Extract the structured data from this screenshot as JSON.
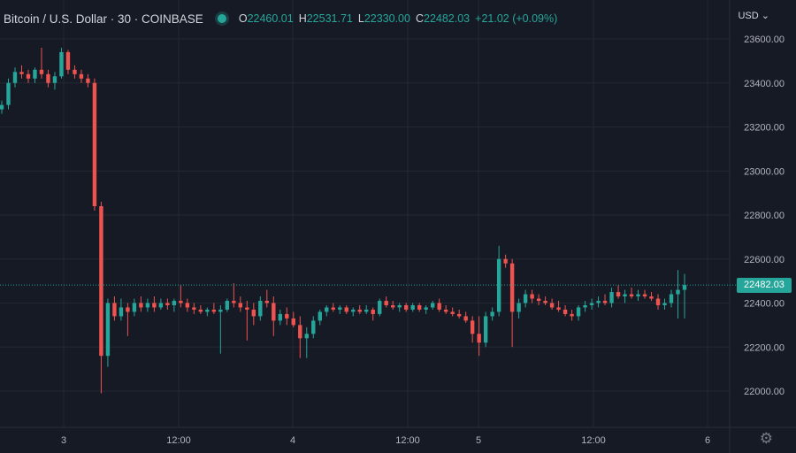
{
  "header": {
    "symbol": "Bitcoin / U.S. Dollar · 30 · COINBASE",
    "open_label": "O",
    "open": "22460.01",
    "high_label": "H",
    "high": "22531.71",
    "low_label": "L",
    "low": "22330.00",
    "close_label": "C",
    "close": "22482.03",
    "change": "+21.02 (+0.09%)"
  },
  "currency": "USD",
  "currency_icon": "chevron-down-icon",
  "settings_icon": "gear-icon",
  "last_price": "22482.03",
  "colors": {
    "up": "#26a69a",
    "down": "#ef5350",
    "background": "#161a25",
    "grid": "#242833"
  },
  "chart_data": {
    "type": "candlestick",
    "ylim": [
      21900,
      23700
    ],
    "ytick_labels": [
      "22000.00",
      "22200.00",
      "22400.00",
      "22600.00",
      "22800.00",
      "23000.00",
      "23200.00",
      "23400.00",
      "23600.00"
    ],
    "xtick_labels": [
      "3",
      "12:00",
      "4",
      "12:00",
      "5",
      "12:00",
      "6"
    ],
    "last_price": 22482.03,
    "candles": [
      [
        23280,
        23320,
        23260,
        23300
      ],
      [
        23300,
        23420,
        23280,
        23400
      ],
      [
        23400,
        23470,
        23380,
        23450
      ],
      [
        23450,
        23480,
        23420,
        23440
      ],
      [
        23440,
        23460,
        23400,
        23420
      ],
      [
        23420,
        23470,
        23400,
        23460
      ],
      [
        23460,
        23560,
        23420,
        23440
      ],
      [
        23440,
        23460,
        23380,
        23400
      ],
      [
        23400,
        23450,
        23370,
        23430
      ],
      [
        23430,
        23560,
        23420,
        23540
      ],
      [
        23540,
        23550,
        23440,
        23460
      ],
      [
        23460,
        23480,
        23420,
        23440
      ],
      [
        23440,
        23460,
        23400,
        23420
      ],
      [
        23420,
        23440,
        23380,
        23400
      ],
      [
        23400,
        23420,
        22820,
        22840
      ],
      [
        22840,
        22860,
        21990,
        22160
      ],
      [
        22160,
        22420,
        22110,
        22400
      ],
      [
        22400,
        22430,
        22320,
        22340
      ],
      [
        22340,
        22420,
        22320,
        22380
      ],
      [
        22380,
        22400,
        22250,
        22360
      ],
      [
        22360,
        22420,
        22340,
        22400
      ],
      [
        22400,
        22430,
        22360,
        22380
      ],
      [
        22380,
        22420,
        22360,
        22400
      ],
      [
        22400,
        22430,
        22360,
        22380
      ],
      [
        22380,
        22420,
        22370,
        22400
      ],
      [
        22400,
        22420,
        22370,
        22390
      ],
      [
        22390,
        22420,
        22360,
        22410
      ],
      [
        22410,
        22480,
        22380,
        22400
      ],
      [
        22400,
        22420,
        22360,
        22380
      ],
      [
        22380,
        22400,
        22350,
        22370
      ],
      [
        22370,
        22390,
        22350,
        22360
      ],
      [
        22360,
        22380,
        22340,
        22370
      ],
      [
        22370,
        22400,
        22350,
        22360
      ],
      [
        22360,
        22390,
        22170,
        22370
      ],
      [
        22370,
        22420,
        22360,
        22410
      ],
      [
        22410,
        22490,
        22380,
        22400
      ],
      [
        22400,
        22430,
        22360,
        22380
      ],
      [
        22380,
        22410,
        22230,
        22370
      ],
      [
        22370,
        22400,
        22300,
        22340
      ],
      [
        22340,
        22430,
        22320,
        22410
      ],
      [
        22410,
        22460,
        22380,
        22400
      ],
      [
        22400,
        22430,
        22250,
        22320
      ],
      [
        22320,
        22370,
        22300,
        22350
      ],
      [
        22350,
        22380,
        22300,
        22330
      ],
      [
        22330,
        22360,
        22290,
        22300
      ],
      [
        22300,
        22340,
        22150,
        22240
      ],
      [
        22240,
        22290,
        22150,
        22260
      ],
      [
        22260,
        22340,
        22240,
        22320
      ],
      [
        22320,
        22370,
        22300,
        22360
      ],
      [
        22360,
        22390,
        22340,
        22380
      ],
      [
        22380,
        22400,
        22360,
        22370
      ],
      [
        22370,
        22390,
        22350,
        22380
      ],
      [
        22380,
        22390,
        22350,
        22360
      ],
      [
        22360,
        22380,
        22340,
        22370
      ],
      [
        22370,
        22390,
        22350,
        22360
      ],
      [
        22360,
        22390,
        22350,
        22370
      ],
      [
        22370,
        22380,
        22320,
        22350
      ],
      [
        22350,
        22420,
        22340,
        22410
      ],
      [
        22410,
        22430,
        22380,
        22390
      ],
      [
        22390,
        22410,
        22370,
        22380
      ],
      [
        22380,
        22400,
        22360,
        22390
      ],
      [
        22390,
        22400,
        22360,
        22370
      ],
      [
        22370,
        22400,
        22360,
        22390
      ],
      [
        22390,
        22400,
        22360,
        22370
      ],
      [
        22370,
        22390,
        22350,
        22380
      ],
      [
        22380,
        22410,
        22370,
        22400
      ],
      [
        22400,
        22420,
        22360,
        22370
      ],
      [
        22370,
        22390,
        22350,
        22360
      ],
      [
        22360,
        22380,
        22340,
        22350
      ],
      [
        22350,
        22370,
        22330,
        22340
      ],
      [
        22340,
        22360,
        22310,
        22320
      ],
      [
        22320,
        22340,
        22220,
        22260
      ],
      [
        22260,
        22340,
        22160,
        22220
      ],
      [
        22220,
        22360,
        22200,
        22340
      ],
      [
        22340,
        22380,
        22320,
        22360
      ],
      [
        22360,
        22660,
        22340,
        22600
      ],
      [
        22600,
        22620,
        22560,
        22580
      ],
      [
        22580,
        22600,
        22200,
        22360
      ],
      [
        22360,
        22420,
        22330,
        22400
      ],
      [
        22400,
        22460,
        22380,
        22440
      ],
      [
        22440,
        22460,
        22400,
        22420
      ],
      [
        22420,
        22440,
        22390,
        22410
      ],
      [
        22410,
        22430,
        22390,
        22400
      ],
      [
        22400,
        22420,
        22370,
        22380
      ],
      [
        22380,
        22410,
        22360,
        22370
      ],
      [
        22370,
        22390,
        22340,
        22350
      ],
      [
        22350,
        22370,
        22320,
        22340
      ],
      [
        22340,
        22390,
        22320,
        22380
      ],
      [
        22380,
        22410,
        22360,
        22390
      ],
      [
        22390,
        22420,
        22370,
        22400
      ],
      [
        22400,
        22430,
        22380,
        22410
      ],
      [
        22410,
        22440,
        22390,
        22400
      ],
      [
        22400,
        22470,
        22380,
        22450
      ],
      [
        22450,
        22480,
        22420,
        22430
      ],
      [
        22430,
        22460,
        22400,
        22440
      ],
      [
        22440,
        22470,
        22420,
        22430
      ],
      [
        22430,
        22460,
        22410,
        22440
      ],
      [
        22440,
        22460,
        22420,
        22430
      ],
      [
        22430,
        22450,
        22410,
        22420
      ],
      [
        22420,
        22440,
        22370,
        22390
      ],
      [
        22390,
        22420,
        22370,
        22400
      ],
      [
        22400,
        22460,
        22380,
        22440
      ],
      [
        22440,
        22550,
        22330,
        22460
      ],
      [
        22460,
        22532,
        22330,
        22482
      ]
    ]
  }
}
